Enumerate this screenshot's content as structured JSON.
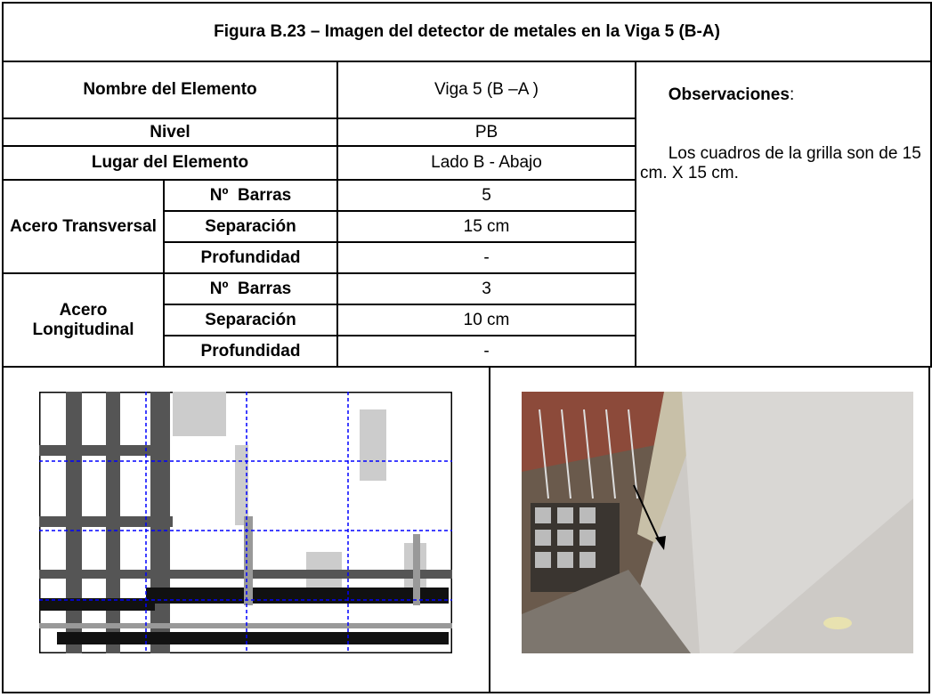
{
  "table": {
    "title": "Figura B.23 – Imagen del detector de metales en la Viga 5 (B-A)",
    "element_name": {
      "label": "Nombre del Elemento",
      "value": "Viga 5 (B –A )"
    },
    "level": {
      "label": "Nivel",
      "value": "PB"
    },
    "location": {
      "label": "Lugar del Elemento",
      "value": "Lado B - Abajo"
    },
    "groups": [
      {
        "label": "Acero Transversal",
        "rows": [
          [
            "Nº  Barras",
            "5"
          ],
          [
            "Separación",
            "15 cm"
          ],
          [
            "Profundidad",
            "-"
          ]
        ]
      },
      {
        "label": "Acero Longitudinal",
        "rows": [
          [
            "Nº  Barras",
            "3"
          ],
          [
            "Separación",
            "10 cm"
          ],
          [
            "Profundidad",
            "-"
          ]
        ]
      }
    ],
    "observations": {
      "heading": "Observaciones",
      "colon": ":",
      "text": "Los cuadros de la grilla son de 15 cm. X 15 cm."
    }
  }
}
